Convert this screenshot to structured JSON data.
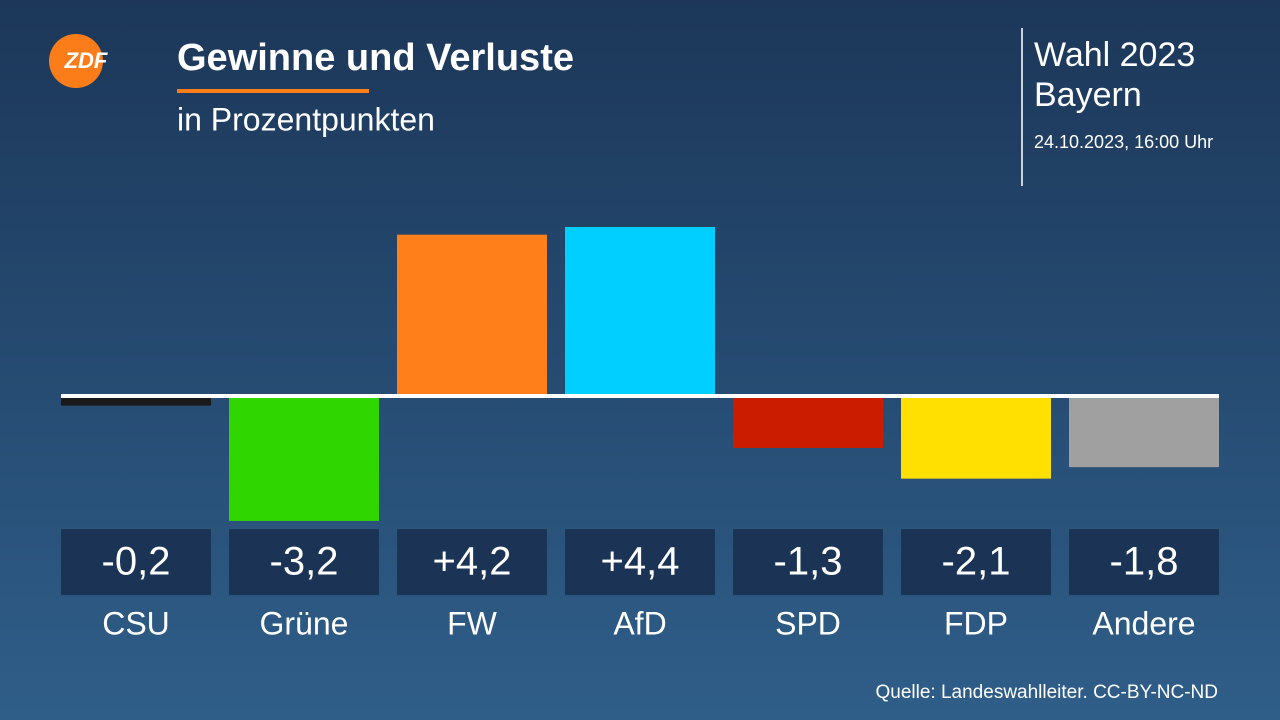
{
  "chart_data": {
    "type": "bar",
    "logo": "ZDF",
    "title": "Gewinne und Verluste",
    "subtitle": "in Prozentpunkten",
    "election": "Wahl 2023",
    "region": "Bayern",
    "timestamp": "24.10.2023, 16:00 Uhr",
    "source": "Quelle: Landeswahlleiter. CC-BY-NC-ND",
    "categories": [
      "CSU",
      "Grüne",
      "FW",
      "AfD",
      "SPD",
      "FDP",
      "Andere"
    ],
    "values": [
      -0.2,
      -3.2,
      4.2,
      4.4,
      -1.3,
      -2.1,
      -1.8
    ],
    "value_labels": [
      "-0,2",
      "-3,2",
      "+4,2",
      "+4,4",
      "-1,3",
      "-2,1",
      "-1,8"
    ],
    "colors": [
      "#1a1a1a",
      "#2fd600",
      "#ff7f1a",
      "#00cfff",
      "#cc1c00",
      "#ffe000",
      "#a0a0a0"
    ]
  }
}
